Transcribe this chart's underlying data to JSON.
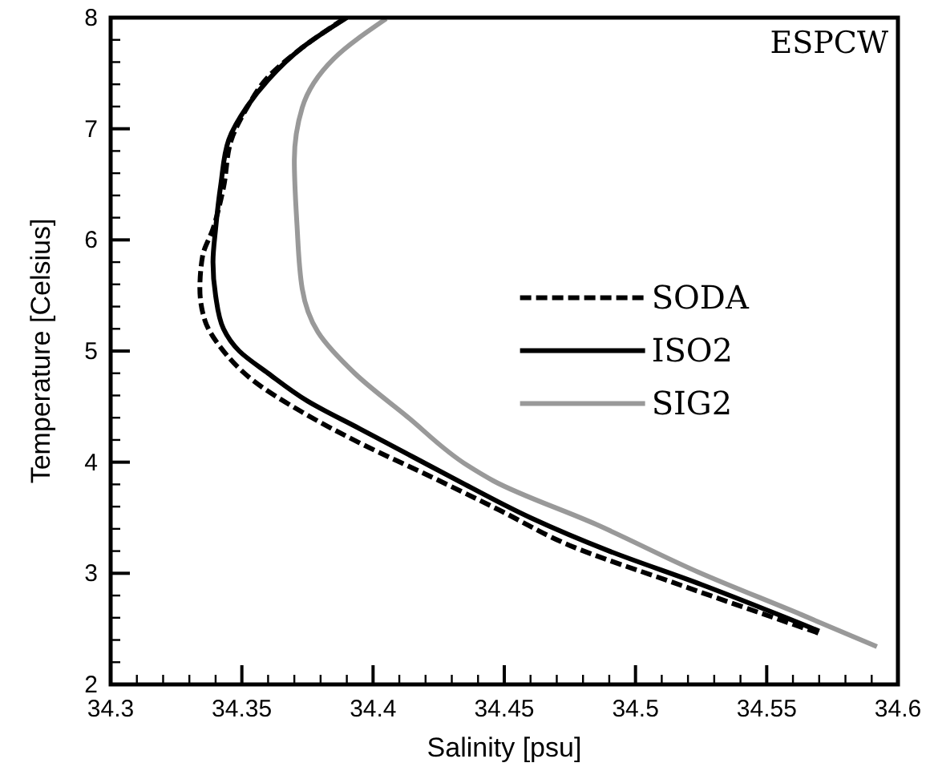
{
  "chart_data": {
    "type": "line",
    "xlabel": "Salinity [psu]",
    "ylabel": "Temperature [Celsius]",
    "annotations": [
      "ESPCW"
    ],
    "xlim": [
      34.3,
      34.6
    ],
    "xticks": [
      34.3,
      34.35,
      34.4,
      34.45,
      34.5,
      34.55,
      34.6
    ],
    "ylim": [
      2,
      8
    ],
    "yticks": [
      2,
      3,
      4,
      5,
      6,
      7,
      8
    ],
    "grid": false,
    "legend": "right",
    "marker": "none",
    "series": [
      {
        "name": "SODA",
        "color": "#000000",
        "line_style": "dashed",
        "x": [
          34.389,
          34.373,
          34.359,
          34.352,
          34.346,
          34.343,
          34.339,
          34.335,
          34.334,
          34.336,
          34.342,
          34.354,
          34.373,
          34.396,
          34.422,
          34.448,
          34.475,
          34.514,
          34.543,
          34.57
        ],
        "values": [
          7.99,
          7.73,
          7.44,
          7.19,
          6.9,
          6.47,
          6.1,
          5.85,
          5.56,
          5.27,
          5.03,
          4.74,
          4.45,
          4.16,
          3.87,
          3.57,
          3.25,
          2.92,
          2.68,
          2.46
        ]
      },
      {
        "name": "ISO2",
        "color": "#000000",
        "line_style": "solid",
        "x": [
          34.39,
          34.373,
          34.36,
          34.352,
          34.345,
          34.342,
          34.34,
          34.339,
          34.34,
          34.343,
          34.349,
          34.36,
          34.375,
          34.395,
          34.415,
          34.435,
          34.46,
          34.49,
          34.525,
          34.57
        ],
        "values": [
          8.0,
          7.73,
          7.44,
          7.2,
          6.9,
          6.5,
          6.1,
          5.8,
          5.5,
          5.2,
          5.0,
          4.8,
          4.55,
          4.3,
          4.05,
          3.8,
          3.5,
          3.2,
          2.9,
          2.48
        ]
      },
      {
        "name": "SIG2",
        "color": "#999999",
        "line_style": "solid",
        "x": [
          34.405,
          34.385,
          34.373,
          34.37,
          34.371,
          34.373,
          34.379,
          34.393,
          34.413,
          34.436,
          34.446,
          34.485,
          34.524,
          34.563,
          34.592
        ],
        "values": [
          7.99,
          7.63,
          7.19,
          6.72,
          6.14,
          5.56,
          5.17,
          4.8,
          4.41,
          3.97,
          3.83,
          3.44,
          3.01,
          2.63,
          2.34
        ]
      }
    ]
  }
}
